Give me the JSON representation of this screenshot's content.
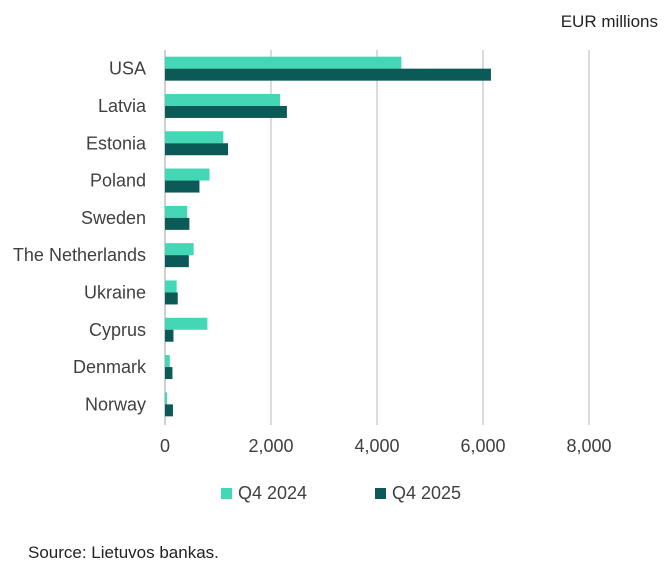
{
  "unit_label": "EUR millions",
  "source": "Source: Lietuvos bankas.",
  "colors": {
    "q4_2024": "#44d7b6",
    "q4_2025": "#0b5a57",
    "grid": "#cfcfcf"
  },
  "chart_data": {
    "type": "bar",
    "orientation": "horizontal",
    "categories": [
      "USA",
      "Latvia",
      "Estonia",
      "Poland",
      "Sweden",
      "The Netherlands",
      "Ukraine",
      "Cyprus",
      "Denmark",
      "Norway"
    ],
    "series": [
      {
        "name": "Q4 2024",
        "values": [
          4460,
          2170,
          1100,
          840,
          420,
          540,
          220,
          800,
          90,
          40
        ]
      },
      {
        "name": "Q4 2025",
        "values": [
          6150,
          2300,
          1190,
          650,
          460,
          450,
          240,
          160,
          140,
          150
        ]
      }
    ],
    "xlim": [
      0,
      9000
    ],
    "xticks": [
      "0",
      "2,000",
      "4,000",
      "6,000",
      "8,000"
    ],
    "xtick_values": [
      0,
      2000,
      4000,
      6000,
      8000
    ],
    "grid": true,
    "legend_position": "bottom"
  }
}
